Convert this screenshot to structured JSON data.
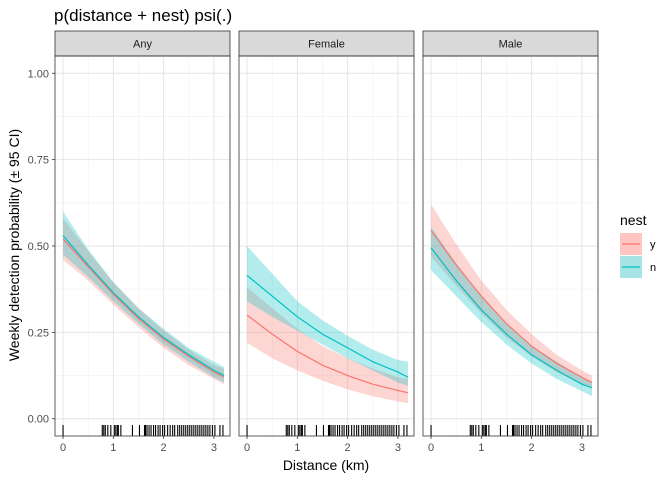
{
  "chart_data": {
    "type": "line",
    "title": "p(distance + nest) psi(.)",
    "xlabel": "Distance (km)",
    "ylabel": "Weekly detection probability (± 95 CI)",
    "xlim": [
      -0.16,
      3.32
    ],
    "ylim": [
      -0.05,
      1.05
    ],
    "x_ticks": [
      0,
      1,
      2,
      3
    ],
    "y_ticks": [
      0.0,
      0.25,
      0.5,
      0.75,
      1.0
    ],
    "y_tick_labels": [
      "0.00",
      "0.25",
      "0.50",
      "0.75",
      "1.00"
    ],
    "grid": true,
    "legend": {
      "title": "nest",
      "position": "right",
      "entries": [
        {
          "label": "y",
          "line_color": "#F8766D",
          "fill_color": "#FFC5C2"
        },
        {
          "label": "n",
          "line_color": "#00BFC4",
          "fill_color": "#A6E4E6"
        }
      ]
    },
    "rug_x": [
      0.0,
      0.78,
      0.81,
      0.84,
      0.89,
      0.95,
      1.02,
      1.05,
      1.08,
      1.1,
      1.15,
      1.38,
      1.52,
      1.62,
      1.64,
      1.67,
      1.71,
      1.75,
      1.8,
      1.84,
      1.89,
      1.93,
      1.98,
      2.02,
      2.08,
      2.13,
      2.18,
      2.22,
      2.28,
      2.32,
      2.36,
      2.4,
      2.44,
      2.48,
      2.52,
      2.56,
      2.6,
      2.64,
      2.68,
      2.72,
      2.76,
      2.8,
      2.84,
      2.88,
      2.92,
      2.97,
      3.02,
      3.12,
      3.18
    ],
    "panels": [
      {
        "label": "Any",
        "series": [
          {
            "name": "y",
            "x": [
              0,
              0.5,
              1,
              1.5,
              2,
              2.5,
              3,
              3.2
            ],
            "y": [
              0.52,
              0.44,
              0.36,
              0.29,
              0.23,
              0.18,
              0.135,
              0.12
            ],
            "lower": [
              0.46,
              0.4,
              0.33,
              0.265,
              0.205,
              0.155,
              0.115,
              0.1
            ],
            "upper": [
              0.58,
              0.485,
              0.395,
              0.32,
              0.255,
              0.2,
              0.155,
              0.145
            ]
          },
          {
            "name": "n",
            "x": [
              0,
              0.5,
              1,
              1.5,
              2,
              2.5,
              3,
              3.2
            ],
            "y": [
              0.53,
              0.445,
              0.365,
              0.295,
              0.235,
              0.185,
              0.14,
              0.125
            ],
            "lower": [
              0.475,
              0.41,
              0.34,
              0.275,
              0.215,
              0.165,
              0.12,
              0.105
            ],
            "upper": [
              0.6,
              0.49,
              0.395,
              0.32,
              0.26,
              0.205,
              0.165,
              0.15
            ]
          }
        ]
      },
      {
        "label": "Female",
        "series": [
          {
            "name": "y",
            "x": [
              0,
              0.5,
              1,
              1.5,
              2,
              2.5,
              3,
              3.2
            ],
            "y": [
              0.3,
              0.245,
              0.195,
              0.155,
              0.125,
              0.1,
              0.082,
              0.075
            ],
            "lower": [
              0.22,
              0.175,
              0.14,
              0.11,
              0.085,
              0.065,
              0.05,
              0.045
            ],
            "upper": [
              0.38,
              0.32,
              0.26,
              0.21,
              0.175,
              0.145,
              0.12,
              0.115
            ]
          },
          {
            "name": "n",
            "x": [
              0,
              0.5,
              1,
              1.5,
              2,
              2.5,
              3,
              3.2
            ],
            "y": [
              0.415,
              0.355,
              0.295,
              0.245,
              0.205,
              0.165,
              0.135,
              0.12
            ],
            "lower": [
              0.34,
              0.295,
              0.255,
              0.215,
              0.175,
              0.14,
              0.105,
              0.095
            ],
            "upper": [
              0.5,
              0.42,
              0.34,
              0.285,
              0.24,
              0.2,
              0.17,
              0.165
            ]
          }
        ]
      },
      {
        "label": "Male",
        "series": [
          {
            "name": "y",
            "x": [
              0,
              0.5,
              1,
              1.5,
              2,
              2.5,
              3,
              3.2
            ],
            "y": [
              0.545,
              0.445,
              0.355,
              0.275,
              0.21,
              0.16,
              0.12,
              0.105
            ],
            "lower": [
              0.47,
              0.385,
              0.305,
              0.235,
              0.18,
              0.135,
              0.1,
              0.09
            ],
            "upper": [
              0.62,
              0.505,
              0.4,
              0.315,
              0.245,
              0.185,
              0.14,
              0.125
            ]
          },
          {
            "name": "n",
            "x": [
              0,
              0.5,
              1,
              1.5,
              2,
              2.5,
              3,
              3.2
            ],
            "y": [
              0.495,
              0.4,
              0.315,
              0.245,
              0.185,
              0.14,
              0.1,
              0.09
            ],
            "lower": [
              0.43,
              0.355,
              0.28,
              0.215,
              0.16,
              0.115,
              0.08,
              0.065
            ],
            "upper": [
              0.555,
              0.45,
              0.355,
              0.275,
              0.21,
              0.165,
              0.12,
              0.105
            ]
          }
        ]
      }
    ]
  }
}
